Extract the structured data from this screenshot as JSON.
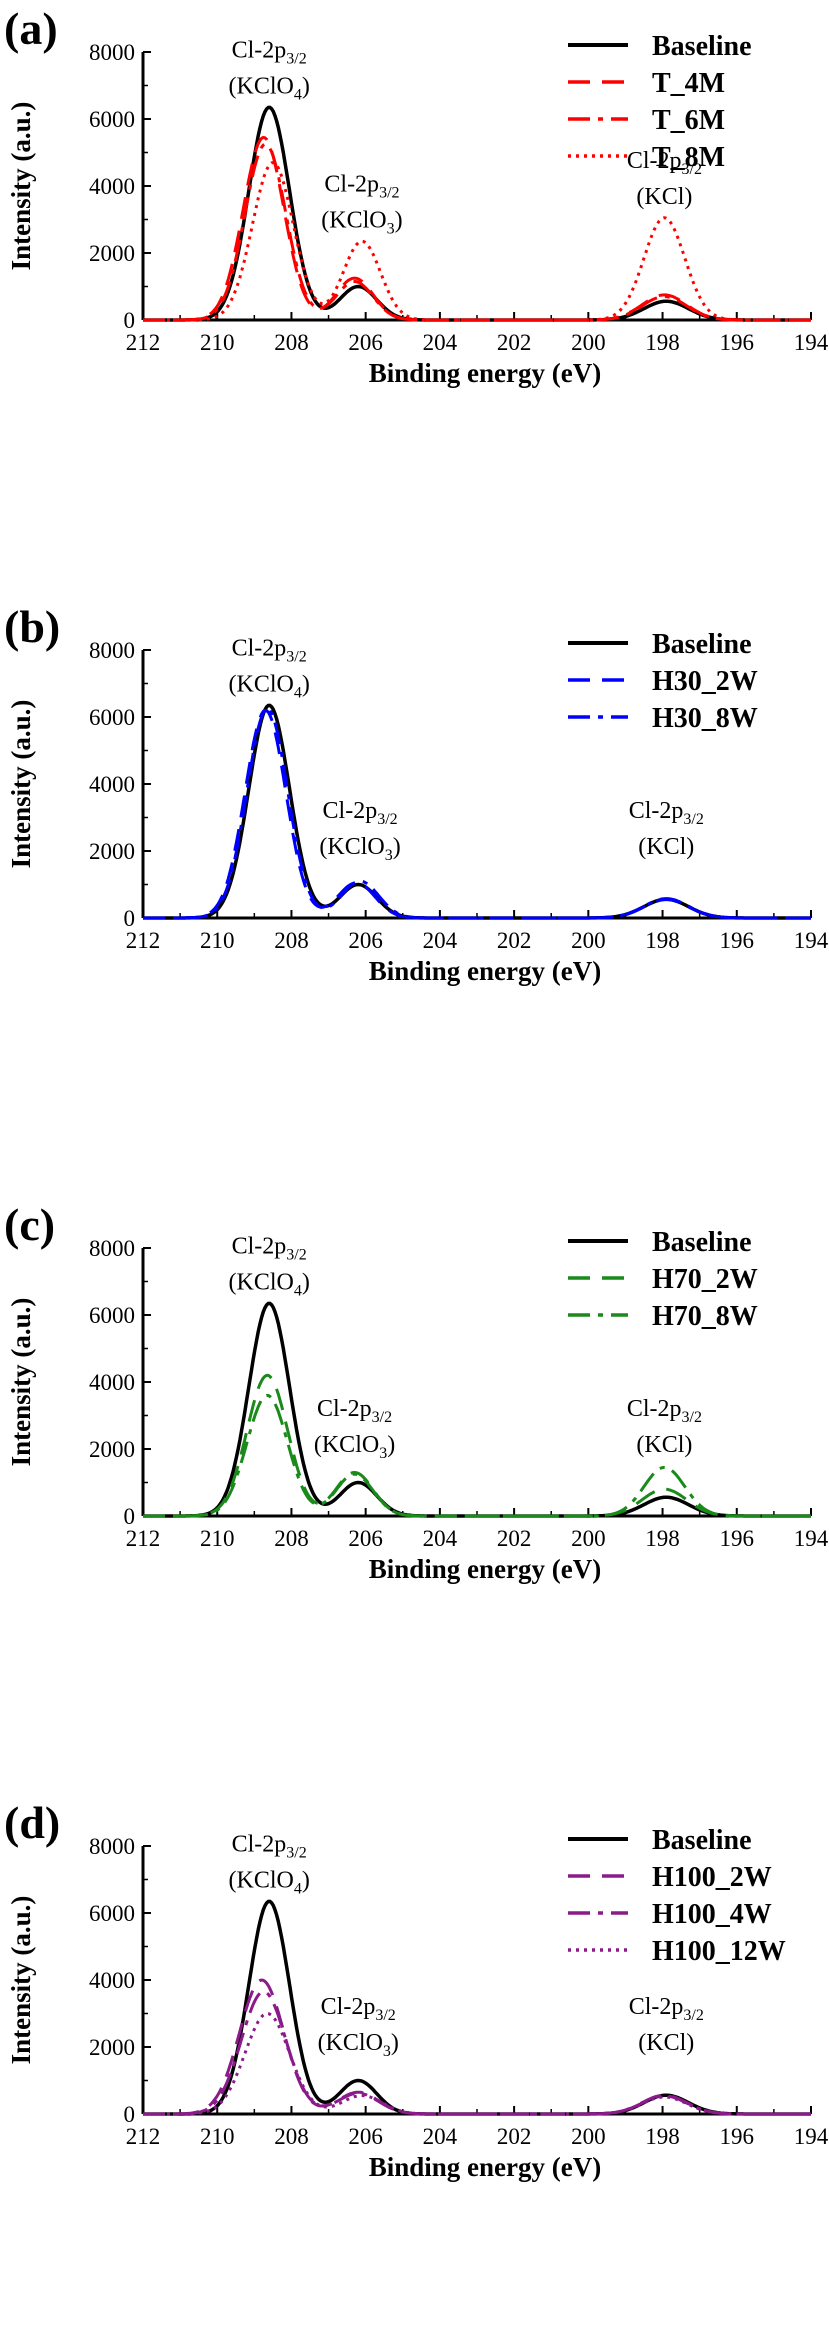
{
  "chart_data": [
    {
      "type": "line",
      "panel_label": "(a)",
      "xlabel": "Binding energy (eV)",
      "ylabel": "Intensity (a.u.)",
      "xlim": [
        212,
        194
      ],
      "ylim": [
        0,
        8000
      ],
      "x_ticks": [
        212,
        210,
        208,
        206,
        204,
        202,
        200,
        198,
        196,
        194
      ],
      "y_ticks": [
        0,
        2000,
        4000,
        6000,
        8000
      ],
      "grid": false,
      "legend_position": "top-right",
      "annotations": [
        {
          "text": "Cl-2p",
          "sub": "3/2",
          "compound": "(KClO",
          "compound_sub": "4",
          "compound_tail": ")",
          "at": "peak-1"
        },
        {
          "text": "Cl-2p",
          "sub": "3/2",
          "compound": "(KClO",
          "compound_sub": "3",
          "compound_tail": ")",
          "at": "peak-2"
        },
        {
          "text": "Cl-2p",
          "sub": "3/2",
          "compound": "(KCl)",
          "compound_sub": "",
          "compound_tail": "",
          "at": "peak-3"
        }
      ],
      "series": [
        {
          "name": "Baseline",
          "color": "#000000",
          "style": "solid",
          "peaks": [
            [
              208.6,
              6350,
              0.55
            ],
            [
              206.2,
              1000,
              0.5
            ],
            [
              197.9,
              560,
              0.6
            ]
          ]
        },
        {
          "name": "T_4M",
          "color": "#ff0000",
          "style": "dash",
          "peaks": [
            [
              208.75,
              5450,
              0.55
            ],
            [
              206.3,
              1250,
              0.5
            ],
            [
              197.95,
              750,
              0.6
            ]
          ]
        },
        {
          "name": "T_6M",
          "color": "#ff0000",
          "style": "dashdot",
          "peaks": [
            [
              208.7,
              5250,
              0.55
            ],
            [
              206.3,
              1150,
              0.5
            ],
            [
              197.95,
              700,
              0.6
            ]
          ]
        },
        {
          "name": "T_8M",
          "color": "#ff0000",
          "style": "dot",
          "peaks": [
            [
              208.5,
              4700,
              0.55
            ],
            [
              206.1,
              2350,
              0.5
            ],
            [
              197.95,
              3050,
              0.55
            ]
          ]
        }
      ]
    },
    {
      "type": "line",
      "panel_label": "(b)",
      "xlabel": "Binding energy (eV)",
      "ylabel": "Intensity (a.u.)",
      "xlim": [
        212,
        194
      ],
      "ylim": [
        0,
        8000
      ],
      "x_ticks": [
        212,
        210,
        208,
        206,
        204,
        202,
        200,
        198,
        196,
        194
      ],
      "y_ticks": [
        0,
        2000,
        4000,
        6000,
        8000
      ],
      "grid": false,
      "legend_position": "top-right",
      "annotations": [
        {
          "text": "Cl-2p",
          "sub": "3/2",
          "compound": "(KClO",
          "compound_sub": "4",
          "compound_tail": ")",
          "at": "peak-1"
        },
        {
          "text": "Cl-2p",
          "sub": "3/2",
          "compound": "(KClO",
          "compound_sub": "3",
          "compound_tail": ")",
          "at": "peak-2"
        },
        {
          "text": "Cl-2p",
          "sub": "3/2",
          "compound": "(KCl)",
          "compound_sub": "",
          "compound_tail": "",
          "at": "peak-3"
        }
      ],
      "series": [
        {
          "name": "Baseline",
          "color": "#000000",
          "style": "solid",
          "peaks": [
            [
              208.6,
              6350,
              0.55
            ],
            [
              206.2,
              1000,
              0.5
            ],
            [
              197.9,
              560,
              0.6
            ]
          ]
        },
        {
          "name": "H30_2W",
          "color": "#0000ff",
          "style": "dash",
          "peaks": [
            [
              208.7,
              6200,
              0.55
            ],
            [
              206.25,
              1050,
              0.5
            ],
            [
              197.9,
              550,
              0.6
            ]
          ]
        },
        {
          "name": "H30_8W",
          "color": "#0000ff",
          "style": "dashdot",
          "peaks": [
            [
              208.65,
              6250,
              0.55
            ],
            [
              206.15,
              1100,
              0.5
            ],
            [
              197.9,
              580,
              0.6
            ]
          ]
        }
      ]
    },
    {
      "type": "line",
      "panel_label": "(c)",
      "xlabel": "Binding energy (eV)",
      "ylabel": "Intensity (a.u.)",
      "xlim": [
        212,
        194
      ],
      "ylim": [
        0,
        8000
      ],
      "x_ticks": [
        212,
        210,
        208,
        206,
        204,
        202,
        200,
        198,
        196,
        194
      ],
      "y_ticks": [
        0,
        2000,
        4000,
        6000,
        8000
      ],
      "grid": false,
      "legend_position": "top-right",
      "annotations": [
        {
          "text": "Cl-2p",
          "sub": "3/2",
          "compound": "(KClO",
          "compound_sub": "4",
          "compound_tail": ")",
          "at": "peak-1"
        },
        {
          "text": "Cl-2p",
          "sub": "3/2",
          "compound": "(KClO",
          "compound_sub": "3",
          "compound_tail": ")",
          "at": "peak-2"
        },
        {
          "text": "Cl-2p",
          "sub": "3/2",
          "compound": "(KCl)",
          "compound_sub": "",
          "compound_tail": "",
          "at": "peak-3"
        }
      ],
      "series": [
        {
          "name": "Baseline",
          "color": "#000000",
          "style": "solid",
          "peaks": [
            [
              208.6,
              6350,
              0.55
            ],
            [
              206.2,
              1000,
              0.5
            ],
            [
              197.9,
              560,
              0.6
            ]
          ]
        },
        {
          "name": "H70_2W",
          "color": "#1a8a1a",
          "style": "dash",
          "peaks": [
            [
              208.65,
              4200,
              0.55
            ],
            [
              206.3,
              1300,
              0.5
            ],
            [
              197.95,
              800,
              0.6
            ]
          ]
        },
        {
          "name": "H70_8W",
          "color": "#1a8a1a",
          "style": "dashdot",
          "peaks": [
            [
              208.65,
              3600,
              0.55
            ],
            [
              206.3,
              1250,
              0.5
            ],
            [
              197.95,
              1450,
              0.55
            ]
          ]
        }
      ]
    },
    {
      "type": "line",
      "panel_label": "(d)",
      "xlabel": "Binding energy (eV)",
      "ylabel": "Intensity (a.u.)",
      "xlim": [
        212,
        194
      ],
      "ylim": [
        0,
        8000
      ],
      "x_ticks": [
        212,
        210,
        208,
        206,
        204,
        202,
        200,
        198,
        196,
        194
      ],
      "y_ticks": [
        0,
        2000,
        4000,
        6000,
        8000
      ],
      "grid": false,
      "legend_position": "top-right",
      "annotations": [
        {
          "text": "Cl-2p",
          "sub": "3/2",
          "compound": "(KClO",
          "compound_sub": "4",
          "compound_tail": ")",
          "at": "peak-1"
        },
        {
          "text": "Cl-2p",
          "sub": "3/2",
          "compound": "(KClO",
          "compound_sub": "3",
          "compound_tail": ")",
          "at": "peak-2"
        },
        {
          "text": "Cl-2p",
          "sub": "3/2",
          "compound": "(KCl)",
          "compound_sub": "",
          "compound_tail": "",
          "at": "peak-3"
        }
      ],
      "series": [
        {
          "name": "Baseline",
          "color": "#000000",
          "style": "solid",
          "peaks": [
            [
              208.6,
              6350,
              0.55
            ],
            [
              206.2,
              1000,
              0.5
            ],
            [
              197.9,
              560,
              0.6
            ]
          ]
        },
        {
          "name": "H100_2W",
          "color": "#8b1a8b",
          "style": "dash",
          "peaks": [
            [
              208.8,
              4000,
              0.6
            ],
            [
              206.2,
              650,
              0.55
            ],
            [
              197.95,
              560,
              0.6
            ]
          ]
        },
        {
          "name": "H100_4W",
          "color": "#8b1a8b",
          "style": "dashdot",
          "peaks": [
            [
              208.75,
              3650,
              0.6
            ],
            [
              206.2,
              620,
              0.55
            ],
            [
              197.95,
              540,
              0.6
            ]
          ]
        },
        {
          "name": "H100_12W",
          "color": "#8b1a8b",
          "style": "dot",
          "peaks": [
            [
              208.65,
              3000,
              0.6
            ],
            [
              206.1,
              550,
              0.55
            ],
            [
              197.95,
              510,
              0.6
            ]
          ]
        }
      ]
    }
  ]
}
